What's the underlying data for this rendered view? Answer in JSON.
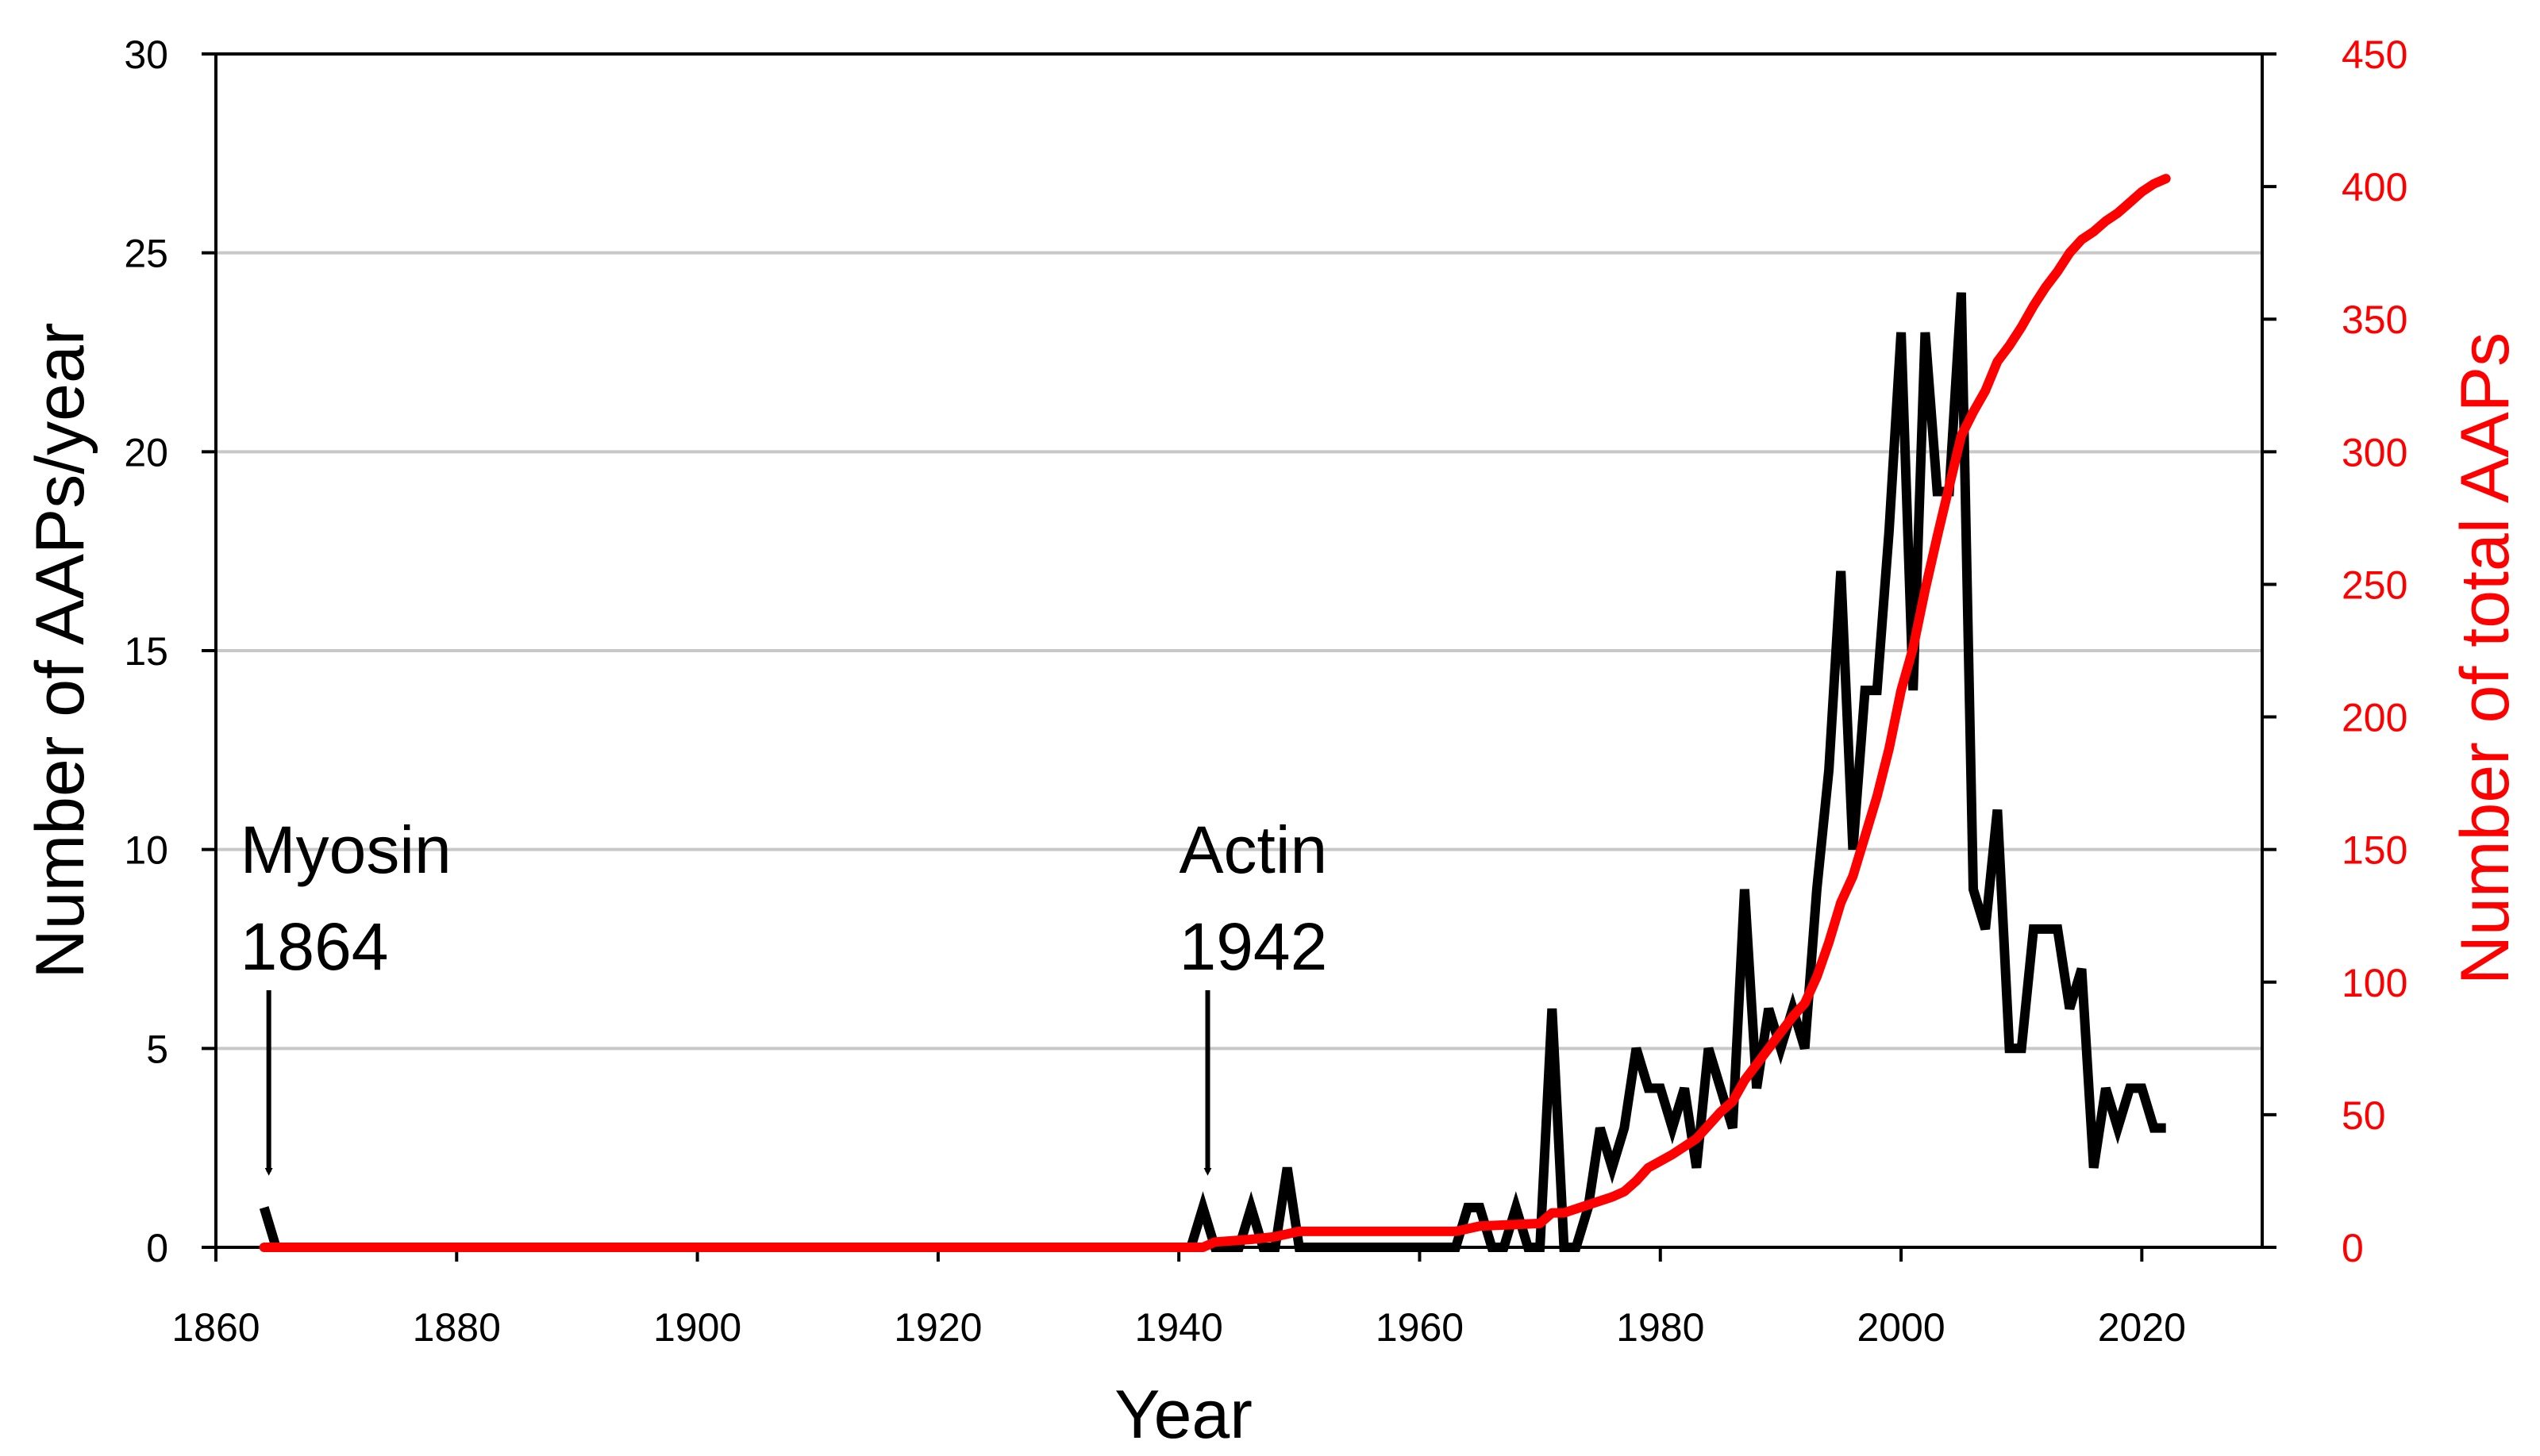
{
  "chart_data": {
    "type": "line",
    "title": "",
    "xlabel": "Year",
    "ylabel_left": "Number of AAPs/year",
    "ylabel_right": "Number of total AAPs",
    "xlim": [
      1860,
      2030
    ],
    "ylim_left": [
      0,
      30
    ],
    "ylim_right": [
      0,
      450
    ],
    "x_ticks": [
      1860,
      1880,
      1900,
      1920,
      1940,
      1960,
      1980,
      2000,
      2020
    ],
    "y_left_ticks": [
      0,
      5,
      10,
      15,
      20,
      25,
      30
    ],
    "y_right_ticks": [
      0,
      50,
      100,
      150,
      200,
      250,
      300,
      350,
      400,
      450
    ],
    "grid": "horizontal",
    "colors": {
      "per_year": "#000000",
      "total": "#ff0000",
      "grid": "#c8c8c8"
    },
    "series": [
      {
        "axis": "left",
        "color": "#000000",
        "points": [
          [
            1864,
            1
          ],
          [
            1865,
            0
          ],
          [
            1941,
            0
          ],
          [
            1942,
            1
          ],
          [
            1943,
            0
          ],
          [
            1945,
            0
          ],
          [
            1946,
            1
          ],
          [
            1947,
            0
          ],
          [
            1948,
            0
          ],
          [
            1949,
            2
          ],
          [
            1950,
            0
          ],
          [
            1963,
            0
          ],
          [
            1964,
            1
          ],
          [
            1965,
            1
          ],
          [
            1966,
            0
          ],
          [
            1967,
            0
          ],
          [
            1968,
            1
          ],
          [
            1969,
            0
          ],
          [
            1970,
            0
          ],
          [
            1971,
            6
          ],
          [
            1972,
            0
          ],
          [
            1973,
            0
          ],
          [
            1974,
            1
          ],
          [
            1975,
            3
          ],
          [
            1976,
            2
          ],
          [
            1977,
            3
          ],
          [
            1978,
            5
          ],
          [
            1979,
            4
          ],
          [
            1980,
            4
          ],
          [
            1981,
            3
          ],
          [
            1982,
            4
          ],
          [
            1983,
            2
          ],
          [
            1984,
            5
          ],
          [
            1985,
            4
          ],
          [
            1986,
            3
          ],
          [
            1987,
            9
          ],
          [
            1988,
            4
          ],
          [
            1989,
            6
          ],
          [
            1990,
            5
          ],
          [
            1991,
            6
          ],
          [
            1992,
            5
          ],
          [
            1993,
            9
          ],
          [
            1994,
            12
          ],
          [
            1995,
            17
          ],
          [
            1996,
            10
          ],
          [
            1997,
            14
          ],
          [
            1998,
            14
          ],
          [
            1999,
            18
          ],
          [
            2000,
            23
          ],
          [
            2001,
            14
          ],
          [
            2002,
            23
          ],
          [
            2003,
            19
          ],
          [
            2004,
            19
          ],
          [
            2005,
            24
          ],
          [
            2006,
            9
          ],
          [
            2007,
            8
          ],
          [
            2008,
            11
          ],
          [
            2009,
            5
          ],
          [
            2010,
            5
          ],
          [
            2011,
            8
          ],
          [
            2012,
            8
          ],
          [
            2013,
            8
          ],
          [
            2014,
            6
          ],
          [
            2015,
            7
          ],
          [
            2016,
            2
          ],
          [
            2017,
            4
          ],
          [
            2018,
            3
          ],
          [
            2019,
            4
          ],
          [
            2020,
            4
          ],
          [
            2021,
            3
          ],
          [
            2022,
            3
          ]
        ]
      },
      {
        "axis": "right",
        "color": "#ff0000",
        "points": [
          [
            1864,
            0
          ],
          [
            1942,
            0
          ],
          [
            1943,
            2
          ],
          [
            1946,
            3
          ],
          [
            1948,
            4
          ],
          [
            1950,
            6
          ],
          [
            1963,
            6
          ],
          [
            1964,
            7
          ],
          [
            1965,
            8
          ],
          [
            1970,
            9
          ],
          [
            1971,
            13
          ],
          [
            1972,
            13
          ],
          [
            1974,
            16
          ],
          [
            1976,
            19
          ],
          [
            1977,
            21
          ],
          [
            1978,
            25
          ],
          [
            1979,
            30
          ],
          [
            1981,
            35
          ],
          [
            1983,
            41
          ],
          [
            1984,
            46
          ],
          [
            1985,
            51
          ],
          [
            1986,
            55
          ],
          [
            1987,
            63
          ],
          [
            1988,
            69
          ],
          [
            1989,
            75
          ],
          [
            1990,
            81
          ],
          [
            1991,
            87
          ],
          [
            1992,
            92
          ],
          [
            1993,
            102
          ],
          [
            1994,
            115
          ],
          [
            1995,
            130
          ],
          [
            1996,
            140
          ],
          [
            1997,
            155
          ],
          [
            1998,
            170
          ],
          [
            1999,
            188
          ],
          [
            2000,
            210
          ],
          [
            2001,
            226
          ],
          [
            2002,
            248
          ],
          [
            2003,
            268
          ],
          [
            2004,
            287
          ],
          [
            2005,
            306
          ],
          [
            2006,
            315
          ],
          [
            2007,
            323
          ],
          [
            2008,
            334
          ],
          [
            2009,
            340
          ],
          [
            2010,
            347
          ],
          [
            2011,
            355
          ],
          [
            2012,
            362
          ],
          [
            2013,
            368
          ],
          [
            2014,
            375
          ],
          [
            2015,
            380
          ],
          [
            2016,
            383
          ],
          [
            2017,
            387
          ],
          [
            2018,
            390
          ],
          [
            2019,
            394
          ],
          [
            2020,
            398
          ],
          [
            2021,
            401
          ],
          [
            2022,
            403
          ]
        ]
      }
    ],
    "annotations": [
      {
        "line1": "Myosin",
        "line2": "1864",
        "year": 1864,
        "y": 1.5
      },
      {
        "line1": "Actin",
        "line2": "1942",
        "year": 1942,
        "y": 1.5
      }
    ]
  }
}
